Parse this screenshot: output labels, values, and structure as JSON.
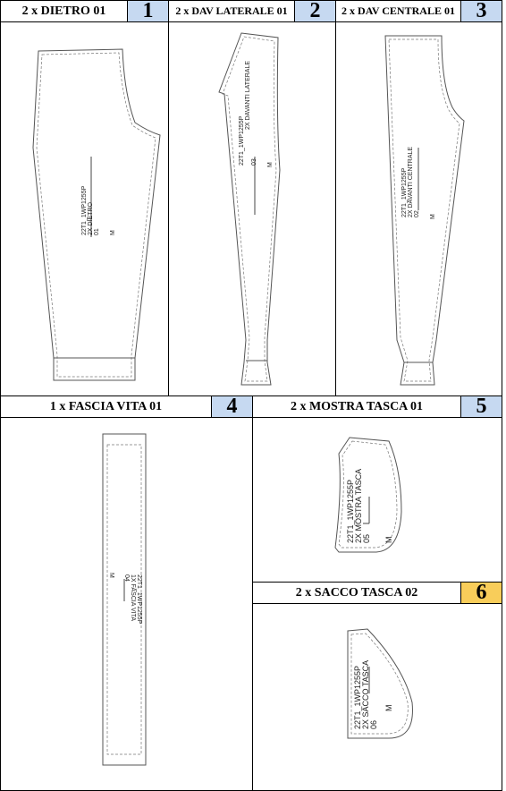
{
  "colors": {
    "badge_blue": "#c6d9f1",
    "badge_yellow": "#f8cd5a",
    "line": "#000000",
    "outline": "#555555"
  },
  "panels": [
    {
      "title": "2 x DIETRO 01",
      "number": "1",
      "label": [
        "22T1_1WP1255P",
        "2X DIETRO",
        "01",
        "M"
      ]
    },
    {
      "title": "2 x DAV LATERALE 01",
      "number": "2",
      "label": [
        "22T1_1WP1255P",
        "2X DAVANTI LATERALE",
        "03",
        "M"
      ]
    },
    {
      "title": "2 x DAV CENTRALE 01",
      "number": "3",
      "label": [
        "22T1_1WP1255P",
        "2X DAVANTI CENTRALE",
        "02",
        "M"
      ]
    },
    {
      "title": "1 x FASCIA VITA 01",
      "number": "4",
      "label": [
        "22T1_1WP1255P",
        "1X FASCIA VITA",
        "04",
        "M"
      ]
    },
    {
      "title": "2 x MOSTRA TASCA 01",
      "number": "5",
      "label": [
        "22T1_1WP1255P",
        "2X MOSTRA TASCA",
        "05",
        "M"
      ]
    },
    {
      "title": "2 x SACCO TASCA 02",
      "number": "6",
      "label": [
        "22T1_1WP1255P",
        "2X SACCO TASCA",
        "06",
        "M"
      ]
    }
  ]
}
